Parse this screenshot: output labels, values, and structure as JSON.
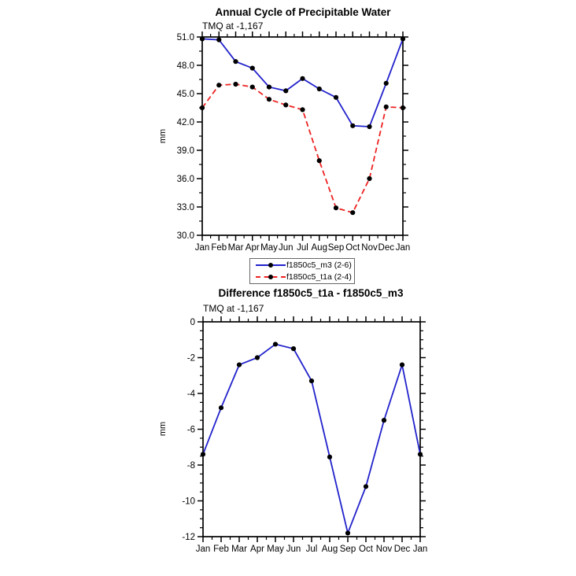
{
  "figure": {
    "background": "#ffffff",
    "axis_color": "#000000",
    "marker_color": "#000000"
  },
  "chart_data": [
    {
      "type": "line",
      "title": "Annual Cycle of Precipitable Water",
      "subtitle": "TMQ at -1,167",
      "ylabel": "mm",
      "xlabel": "",
      "categories": [
        "Jan",
        "Feb",
        "Mar",
        "Apr",
        "May",
        "Jun",
        "Jul",
        "Aug",
        "Sep",
        "Oct",
        "Nov",
        "Dec",
        "Jan"
      ],
      "series": [
        {
          "name": "f1850c5_m3 (2-6)",
          "color": "#2222cc",
          "line_style": "solid",
          "marker": "filled-circle",
          "values": [
            50.8,
            50.7,
            48.4,
            47.7,
            45.7,
            45.3,
            46.6,
            45.5,
            44.6,
            41.6,
            41.5,
            46.1,
            50.8
          ]
        },
        {
          "name": "f1850c5_t1a (2-4)",
          "color": "#ee2222",
          "line_style": "dashed",
          "marker": "filled-circle",
          "values": [
            43.5,
            45.9,
            46.0,
            45.7,
            44.4,
            43.8,
            43.3,
            37.9,
            32.9,
            32.4,
            36.0,
            43.6,
            43.5
          ]
        }
      ],
      "ylim": [
        30.0,
        51.0
      ],
      "ytick_values": [
        51,
        48,
        45,
        42,
        39,
        36,
        33,
        30
      ],
      "ytick_labels": [
        "51.0",
        "48.0",
        "45.0",
        "42.0",
        "39.0",
        "36.0",
        "33.0",
        "30.0"
      ],
      "y_minor_per_interval": 1,
      "x_minor_per_interval": 1,
      "grid": false,
      "legend_position": "below-plot-centered"
    },
    {
      "type": "line",
      "title": "Difference f1850c5_t1a - f1850c5_m3",
      "subtitle": "TMQ at -1,167",
      "ylabel": "mm",
      "xlabel": "",
      "categories": [
        "Jan",
        "Feb",
        "Mar",
        "Apr",
        "May",
        "Jun",
        "Jul",
        "Aug",
        "Sep",
        "Oct",
        "Nov",
        "Dec",
        "Jan"
      ],
      "series": [
        {
          "name": "f1850c5_t1a - f1850c5_m3",
          "color": "#2222cc",
          "line_style": "solid",
          "marker": "filled-circle",
          "values": [
            -7.4,
            -4.8,
            -2.4,
            -2.0,
            -1.25,
            -1.5,
            -3.3,
            -7.55,
            -11.8,
            -9.2,
            -5.5,
            -2.4,
            -7.4
          ]
        }
      ],
      "ylim": [
        -12,
        0
      ],
      "ytick_values": [
        0,
        -2,
        -4,
        -6,
        -8,
        -10,
        -12
      ],
      "ytick_labels": [
        "0",
        "-2",
        "-4",
        "-6",
        "-8",
        "-10",
        "-12"
      ],
      "y_minor_per_interval": 3,
      "x_minor_per_interval": 1,
      "grid": false,
      "legend_position": "none"
    }
  ]
}
